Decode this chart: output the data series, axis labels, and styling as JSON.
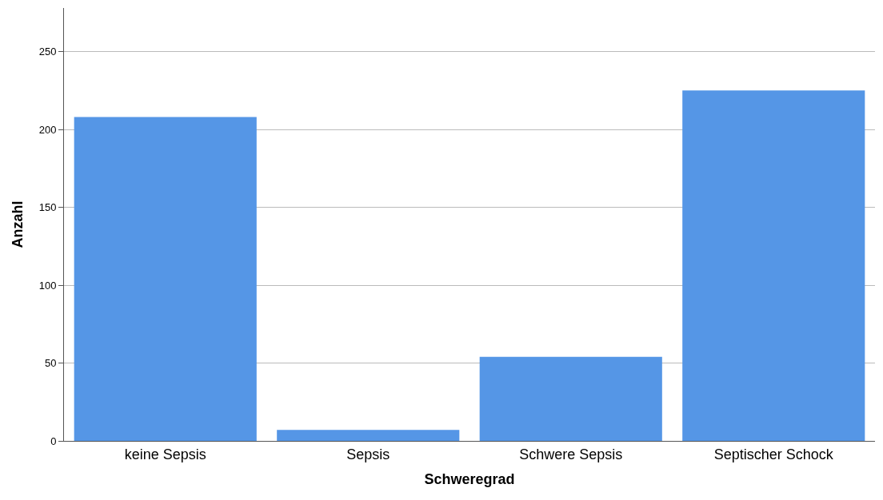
{
  "chart_data": {
    "type": "bar",
    "xlabel": "Schweregrad",
    "ylabel": "Anzahl",
    "categories": [
      "keine Sepsis",
      "Sepsis",
      "Schwere Sepsis",
      "Septischer Schock"
    ],
    "values": [
      208,
      7,
      54,
      225
    ],
    "color": "#5596e6",
    "ylim": [
      0,
      278
    ],
    "yticks": [
      0,
      50,
      100,
      150,
      200,
      250
    ],
    "grid": "y"
  }
}
